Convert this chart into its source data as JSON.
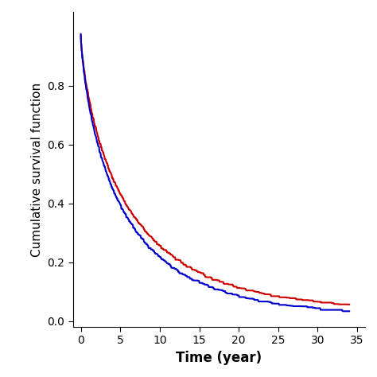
{
  "title": "",
  "xlabel": "Time (year)",
  "ylabel": "Cumulative survival function",
  "xlim": [
    -1,
    36
  ],
  "ylim": [
    -0.02,
    1.05
  ],
  "xticks": [
    0,
    5,
    10,
    15,
    20,
    25,
    30,
    35
  ],
  "yticks": [
    0.0,
    0.2,
    0.4,
    0.6,
    0.8
  ],
  "male_color": "#0000CD",
  "female_color": "#CC0000",
  "line_width": 1.5,
  "background_color": "#ffffff",
  "xlabel_fontsize": 12,
  "ylabel_fontsize": 11,
  "tick_fontsize": 10
}
